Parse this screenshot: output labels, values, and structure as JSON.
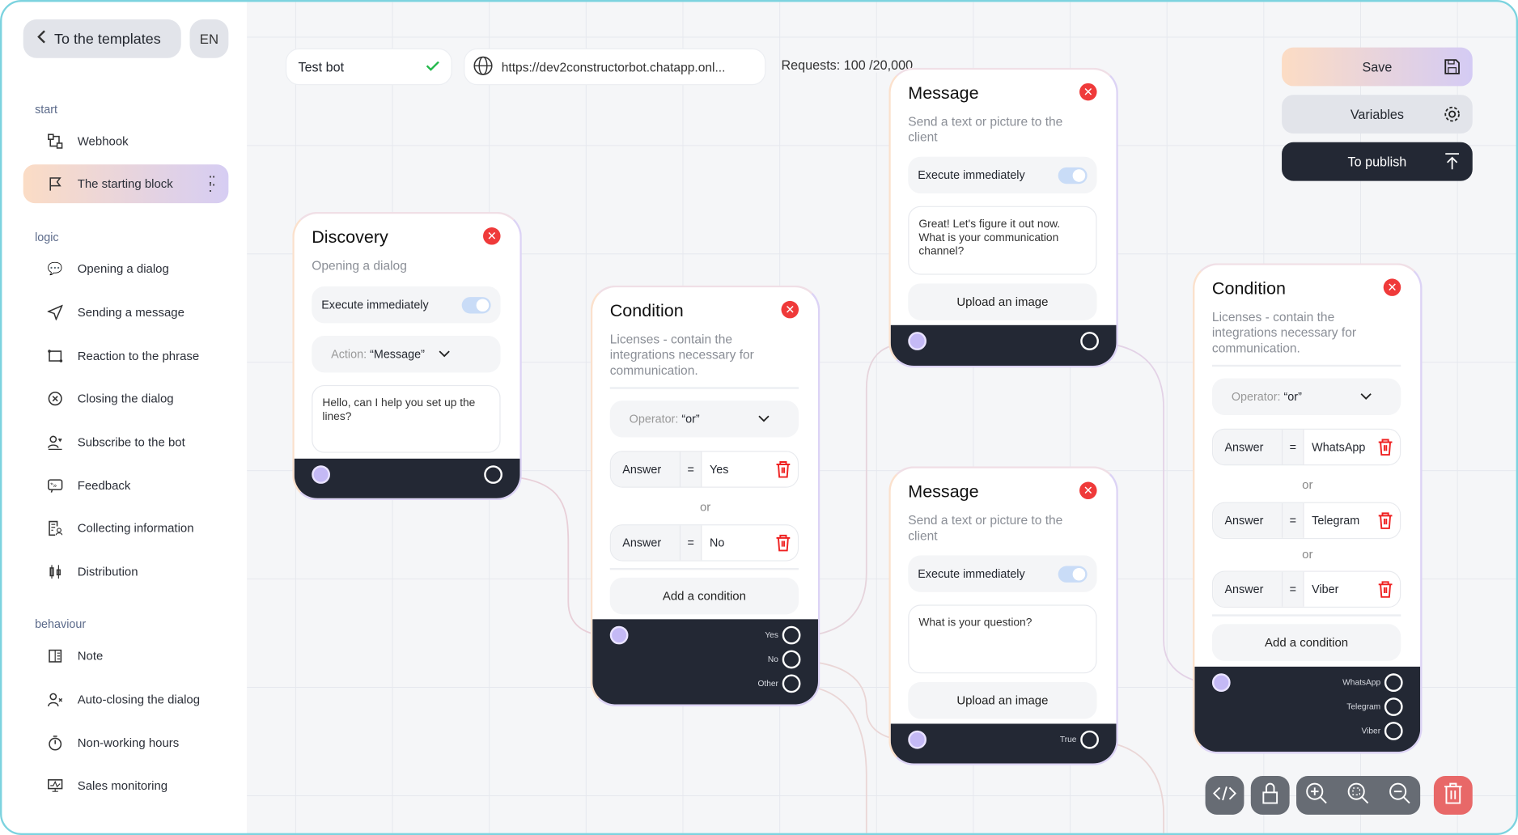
{
  "sidebar": {
    "back_label": "To the templates",
    "lang": "EN",
    "sections": [
      {
        "title": "start",
        "items": [
          {
            "label": "Webhook",
            "icon": "webhook-icon"
          },
          {
            "label": "The starting block",
            "icon": "flag-icon",
            "active": true
          }
        ]
      },
      {
        "title": "logic",
        "items": [
          {
            "label": "Opening a dialog",
            "icon": "chat-open-icon"
          },
          {
            "label": "Sending a message",
            "icon": "send-icon"
          },
          {
            "label": "Reaction to the phrase",
            "icon": "reaction-icon"
          },
          {
            "label": "Closing the dialog",
            "icon": "close-circle-icon"
          },
          {
            "label": "Subscribe to the bot",
            "icon": "user-heart-icon"
          },
          {
            "label": "Feedback",
            "icon": "feedback-icon"
          },
          {
            "label": "Collecting information",
            "icon": "form-user-icon"
          },
          {
            "label": "Distribution",
            "icon": "distribution-icon"
          }
        ]
      },
      {
        "title": "behaviour",
        "items": [
          {
            "label": "Note",
            "icon": "note-icon"
          },
          {
            "label": "Auto-closing the dialog",
            "icon": "user-x-icon"
          },
          {
            "label": "Non-working hours",
            "icon": "timer-icon"
          },
          {
            "label": "Sales monitoring",
            "icon": "monitor-icon"
          }
        ]
      }
    ]
  },
  "topbar": {
    "bot_name": "Test bot",
    "url": "https://dev2constructorbot.chatapp.onl...",
    "requests": "Requests: 100 /20,000"
  },
  "actions": {
    "save": "Save",
    "variables": "Variables",
    "publish": "To publish"
  },
  "cards": {
    "discovery": {
      "title": "Discovery",
      "subtitle": "Opening a dialog",
      "execute": "Execute immediately",
      "action_prefix": "Action:",
      "action_value": "“Message”",
      "text": "Hello, can I help you set up the lines?"
    },
    "condition1": {
      "title": "Condition",
      "desc": "Licenses - contain the integrations necessary for communication.",
      "operator_prefix": "Operator:",
      "operator_value": "“or”",
      "rows": [
        {
          "field": "Answer",
          "op": "=",
          "value": "Yes"
        },
        {
          "field": "Answer",
          "op": "=",
          "value": "No"
        }
      ],
      "or": "or",
      "add": "Add a condition",
      "outputs": [
        "Yes",
        "No",
        "Other"
      ]
    },
    "message1": {
      "title": "Message",
      "desc": "Send a text or picture to the client",
      "execute": "Execute immediately",
      "text": "Great! Let's figure it out now. What is your communication channel?",
      "upload": "Upload an image"
    },
    "message2": {
      "title": "Message",
      "desc": "Send a text or picture to the client",
      "execute": "Execute immediately",
      "text": "What is your question?",
      "upload": "Upload an image",
      "output": "True"
    },
    "condition2": {
      "title": "Condition",
      "desc": "Licenses - contain the integrations necessary for communication.",
      "operator_prefix": "Operator:",
      "operator_value": "“or”",
      "rows": [
        {
          "field": "Answer",
          "op": "=",
          "value": "WhatsApp"
        },
        {
          "field": "Answer",
          "op": "=",
          "value": "Telegram"
        },
        {
          "field": "Answer",
          "op": "=",
          "value": "Viber"
        }
      ],
      "or": "or",
      "add": "Add a condition",
      "outputs": [
        "WhatsApp",
        "Telegram",
        "Viber"
      ]
    }
  },
  "colors": {
    "accent_gradient_start": "#fbdcc5",
    "accent_gradient_end": "#d6cdf3",
    "dark": "#232834",
    "danger": "#ef3a3a",
    "frame": "#7cd3df"
  }
}
